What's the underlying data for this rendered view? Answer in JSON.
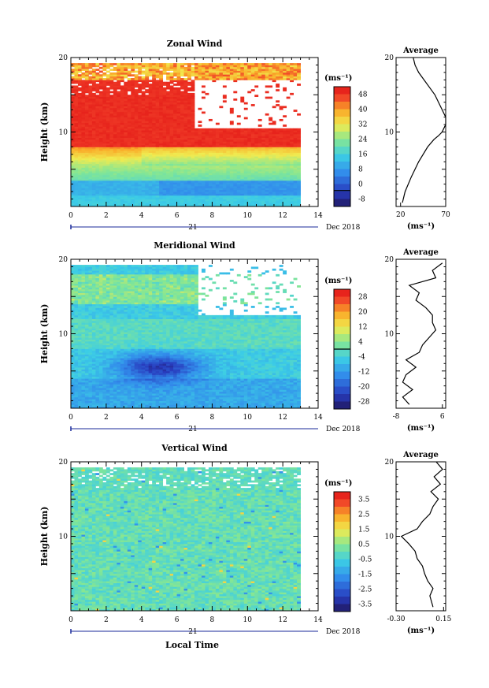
{
  "figure": {
    "x_axis_title": "Local Time",
    "date_label": "Dec 2018",
    "day_label": "21",
    "x_ticks": [
      "0",
      "2",
      "4",
      "6",
      "8",
      "10",
      "12",
      "14"
    ],
    "y_ticks": [
      "10",
      "20"
    ],
    "average_title": "Average",
    "unit_label": "(ms⁻¹)"
  },
  "chart_data": [
    {
      "type": "heatmap",
      "title": "Zonal Wind",
      "ylabel": "Height (km)",
      "xlabel": "Local Time",
      "xlim": [
        0,
        14
      ],
      "ylim": [
        0,
        20
      ],
      "data_time_range": [
        0,
        13
      ],
      "colorbar": {
        "unit": "(ms⁻¹)",
        "ticks": [
          "48",
          "40",
          "32",
          "24",
          "16",
          "8",
          "0",
          "-8"
        ],
        "range": [
          -8,
          52
        ],
        "zero_line": 0
      },
      "average_profile": {
        "title": "Average",
        "xlim": [
          15,
          70
        ],
        "xticks": [
          "20",
          "70"
        ],
        "height_km": [
          0.5,
          2,
          4,
          6,
          8,
          9,
          9.5,
          10,
          11,
          12,
          13,
          14,
          15,
          16,
          17,
          18,
          19,
          20
        ],
        "value_ms": [
          22,
          25,
          32,
          40,
          50,
          57,
          62,
          66,
          70,
          70,
          66,
          62,
          58,
          52,
          46,
          40,
          36,
          34
        ]
      }
    },
    {
      "type": "heatmap",
      "title": "Meridional Wind",
      "ylabel": "Height (km)",
      "xlabel": "Local Time",
      "xlim": [
        0,
        14
      ],
      "ylim": [
        0,
        20
      ],
      "data_time_range": [
        0,
        13
      ],
      "colorbar": {
        "unit": "(ms⁻¹)",
        "ticks": [
          "28",
          "20",
          "12",
          "4",
          "-4",
          "-12",
          "-20",
          "-28"
        ],
        "range": [
          -32,
          32
        ],
        "zero_line": 0
      },
      "average_profile": {
        "title": "Average",
        "xlim": [
          -8,
          7
        ],
        "xticks": [
          "-8",
          "6"
        ],
        "height_km": [
          0.5,
          1.5,
          2.5,
          3.5,
          4.5,
          5.5,
          6.5,
          7.5,
          8.5,
          9.5,
          10.5,
          11.5,
          12.5,
          13.5,
          14.5,
          15.5,
          16.5,
          17.5,
          18.5,
          19.5
        ],
        "value_ms": [
          -4,
          -6,
          -3,
          -6,
          -5,
          -2,
          -5,
          -1,
          0,
          2,
          4,
          3,
          3,
          1,
          -2,
          -1,
          -4,
          4,
          3,
          6
        ]
      }
    },
    {
      "type": "heatmap",
      "title": "Vertical Wind",
      "ylabel": "Height (km)",
      "xlabel": "Local Time",
      "xlim": [
        0,
        14
      ],
      "ylim": [
        0,
        20
      ],
      "data_time_range": [
        0,
        13
      ],
      "colorbar": {
        "unit": "(ms⁻¹)",
        "ticks": [
          "3.5",
          "2.5",
          "1.5",
          "0.5",
          "-0.5",
          "-1.5",
          "-2.5",
          "-3.5"
        ],
        "range": [
          -4,
          4
        ]
      },
      "average_profile": {
        "title": "Average",
        "xlim": [
          -0.3,
          0.17
        ],
        "xticks": [
          "-0.30",
          "0.15"
        ],
        "height_km": [
          0.5,
          2,
          3,
          4,
          5,
          6,
          7,
          8,
          9,
          10,
          11,
          12,
          13,
          14,
          15,
          16,
          17,
          18,
          19,
          20
        ],
        "value_ms": [
          0.05,
          0.02,
          0.05,
          0.0,
          -0.03,
          -0.05,
          -0.1,
          -0.12,
          -0.18,
          -0.25,
          -0.1,
          -0.05,
          0.02,
          0.05,
          0.1,
          0.03,
          0.12,
          0.06,
          0.14,
          0.08
        ]
      }
    }
  ]
}
